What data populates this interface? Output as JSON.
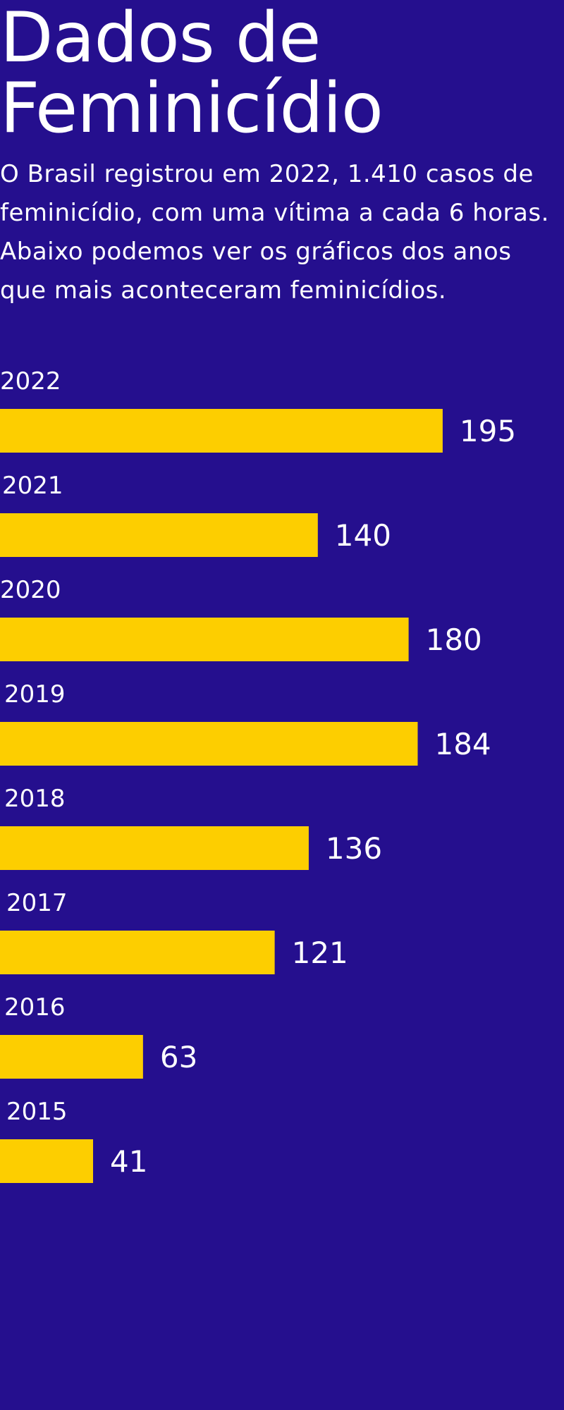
{
  "header": {
    "title_line1": "Dados de",
    "title_line2": "Feminicídio"
  },
  "intro": {
    "text": "O Brasil registrou em 2022, 1.410 casos de feminicídio, com uma vítima a cada 6 horas. Abaixo podemos ver os gráficos dos anos que mais aconteceram feminicídios."
  },
  "colors": {
    "background": "#250f8e",
    "bar": "#fdce00",
    "text": "#ffffff"
  },
  "chart_data": {
    "type": "bar",
    "orientation": "horizontal",
    "categories": [
      "2022",
      "2021",
      "2020",
      "2019",
      "2018",
      "2017",
      "2016",
      "2015"
    ],
    "values": [
      195,
      140,
      180,
      184,
      136,
      121,
      63,
      41
    ],
    "grid": false,
    "legend": "none"
  }
}
